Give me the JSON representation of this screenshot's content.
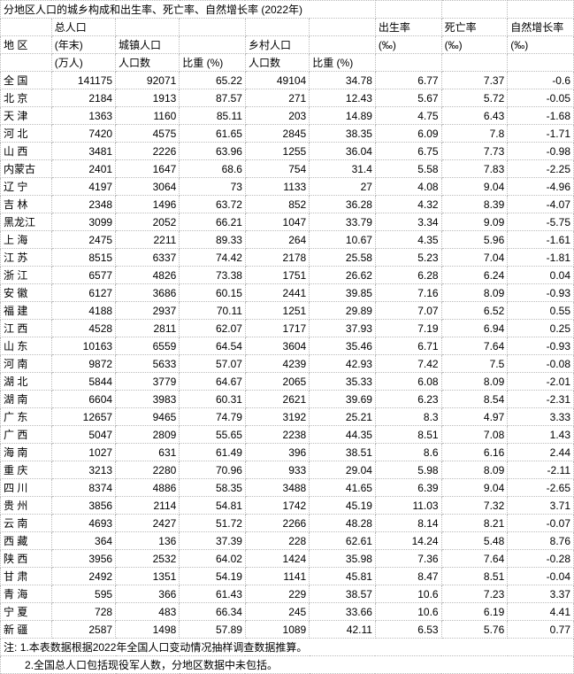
{
  "title": "分地区人口的城乡构成和出生率、死亡率、自然增长率 (2022年)",
  "headers": {
    "region": "地  区",
    "total_pop": "总人口",
    "year_end": "(年末)",
    "wan_ren": "(万人)",
    "urban_pop": "城镇人口",
    "rural_pop": "乡村人口",
    "count": "人口数",
    "pct": "比重 (%)",
    "birth_rate": "出生率",
    "death_rate": "死亡率",
    "growth_rate": "自然增长率",
    "permille": "(‰)"
  },
  "rows": [
    {
      "region": "全  国",
      "total": 141175,
      "urban": 92071,
      "urban_pct": 65.22,
      "rural": 49104,
      "rural_pct": 34.78,
      "birth": 6.77,
      "death": 7.37,
      "growth": -0.6
    },
    {
      "region": "北  京",
      "total": 2184,
      "urban": 1913,
      "urban_pct": 87.57,
      "rural": 271,
      "rural_pct": 12.43,
      "birth": 5.67,
      "death": 5.72,
      "growth": -0.05
    },
    {
      "region": "天  津",
      "total": 1363,
      "urban": 1160,
      "urban_pct": 85.11,
      "rural": 203,
      "rural_pct": 14.89,
      "birth": 4.75,
      "death": 6.43,
      "growth": -1.68
    },
    {
      "region": "河  北",
      "total": 7420,
      "urban": 4575,
      "urban_pct": 61.65,
      "rural": 2845,
      "rural_pct": 38.35,
      "birth": 6.09,
      "death": 7.8,
      "growth": -1.71
    },
    {
      "region": "山  西",
      "total": 3481,
      "urban": 2226,
      "urban_pct": 63.96,
      "rural": 1255,
      "rural_pct": 36.04,
      "birth": 6.75,
      "death": 7.73,
      "growth": -0.98
    },
    {
      "region": "内蒙古",
      "total": 2401,
      "urban": 1647,
      "urban_pct": 68.6,
      "rural": 754,
      "rural_pct": 31.4,
      "birth": 5.58,
      "death": 7.83,
      "growth": -2.25
    },
    {
      "region": "辽  宁",
      "total": 4197,
      "urban": 3064,
      "urban_pct": 73,
      "rural": 1133,
      "rural_pct": 27,
      "birth": 4.08,
      "death": 9.04,
      "growth": -4.96
    },
    {
      "region": "吉  林",
      "total": 2348,
      "urban": 1496,
      "urban_pct": 63.72,
      "rural": 852,
      "rural_pct": 36.28,
      "birth": 4.32,
      "death": 8.39,
      "growth": -4.07
    },
    {
      "region": "黑龙江",
      "total": 3099,
      "urban": 2052,
      "urban_pct": 66.21,
      "rural": 1047,
      "rural_pct": 33.79,
      "birth": 3.34,
      "death": 9.09,
      "growth": -5.75
    },
    {
      "region": "上  海",
      "total": 2475,
      "urban": 2211,
      "urban_pct": 89.33,
      "rural": 264,
      "rural_pct": 10.67,
      "birth": 4.35,
      "death": 5.96,
      "growth": -1.61
    },
    {
      "region": "江  苏",
      "total": 8515,
      "urban": 6337,
      "urban_pct": 74.42,
      "rural": 2178,
      "rural_pct": 25.58,
      "birth": 5.23,
      "death": 7.04,
      "growth": -1.81
    },
    {
      "region": "浙  江",
      "total": 6577,
      "urban": 4826,
      "urban_pct": 73.38,
      "rural": 1751,
      "rural_pct": 26.62,
      "birth": 6.28,
      "death": 6.24,
      "growth": 0.04
    },
    {
      "region": "安  徽",
      "total": 6127,
      "urban": 3686,
      "urban_pct": 60.15,
      "rural": 2441,
      "rural_pct": 39.85,
      "birth": 7.16,
      "death": 8.09,
      "growth": -0.93
    },
    {
      "region": "福  建",
      "total": 4188,
      "urban": 2937,
      "urban_pct": 70.11,
      "rural": 1251,
      "rural_pct": 29.89,
      "birth": 7.07,
      "death": 6.52,
      "growth": 0.55
    },
    {
      "region": "江  西",
      "total": 4528,
      "urban": 2811,
      "urban_pct": 62.07,
      "rural": 1717,
      "rural_pct": 37.93,
      "birth": 7.19,
      "death": 6.94,
      "growth": 0.25
    },
    {
      "region": "山  东",
      "total": 10163,
      "urban": 6559,
      "urban_pct": 64.54,
      "rural": 3604,
      "rural_pct": 35.46,
      "birth": 6.71,
      "death": 7.64,
      "growth": -0.93
    },
    {
      "region": "河  南",
      "total": 9872,
      "urban": 5633,
      "urban_pct": 57.07,
      "rural": 4239,
      "rural_pct": 42.93,
      "birth": 7.42,
      "death": 7.5,
      "growth": -0.08
    },
    {
      "region": "湖  北",
      "total": 5844,
      "urban": 3779,
      "urban_pct": 64.67,
      "rural": 2065,
      "rural_pct": 35.33,
      "birth": 6.08,
      "death": 8.09,
      "growth": -2.01
    },
    {
      "region": "湖  南",
      "total": 6604,
      "urban": 3983,
      "urban_pct": 60.31,
      "rural": 2621,
      "rural_pct": 39.69,
      "birth": 6.23,
      "death": 8.54,
      "growth": -2.31
    },
    {
      "region": "广  东",
      "total": 12657,
      "urban": 9465,
      "urban_pct": 74.79,
      "rural": 3192,
      "rural_pct": 25.21,
      "birth": 8.3,
      "death": 4.97,
      "growth": 3.33
    },
    {
      "region": "广  西",
      "total": 5047,
      "urban": 2809,
      "urban_pct": 55.65,
      "rural": 2238,
      "rural_pct": 44.35,
      "birth": 8.51,
      "death": 7.08,
      "growth": 1.43
    },
    {
      "region": "海  南",
      "total": 1027,
      "urban": 631,
      "urban_pct": 61.49,
      "rural": 396,
      "rural_pct": 38.51,
      "birth": 8.6,
      "death": 6.16,
      "growth": 2.44
    },
    {
      "region": "重  庆",
      "total": 3213,
      "urban": 2280,
      "urban_pct": 70.96,
      "rural": 933,
      "rural_pct": 29.04,
      "birth": 5.98,
      "death": 8.09,
      "growth": -2.11
    },
    {
      "region": "四  川",
      "total": 8374,
      "urban": 4886,
      "urban_pct": 58.35,
      "rural": 3488,
      "rural_pct": 41.65,
      "birth": 6.39,
      "death": 9.04,
      "growth": -2.65
    },
    {
      "region": "贵  州",
      "total": 3856,
      "urban": 2114,
      "urban_pct": 54.81,
      "rural": 1742,
      "rural_pct": 45.19,
      "birth": 11.03,
      "death": 7.32,
      "growth": 3.71
    },
    {
      "region": "云  南",
      "total": 4693,
      "urban": 2427,
      "urban_pct": 51.72,
      "rural": 2266,
      "rural_pct": 48.28,
      "birth": 8.14,
      "death": 8.21,
      "growth": -0.07
    },
    {
      "region": "西  藏",
      "total": 364,
      "urban": 136,
      "urban_pct": 37.39,
      "rural": 228,
      "rural_pct": 62.61,
      "birth": 14.24,
      "death": 5.48,
      "growth": 8.76
    },
    {
      "region": "陕  西",
      "total": 3956,
      "urban": 2532,
      "urban_pct": 64.02,
      "rural": 1424,
      "rural_pct": 35.98,
      "birth": 7.36,
      "death": 7.64,
      "growth": -0.28
    },
    {
      "region": "甘  肃",
      "total": 2492,
      "urban": 1351,
      "urban_pct": 54.19,
      "rural": 1141,
      "rural_pct": 45.81,
      "birth": 8.47,
      "death": 8.51,
      "growth": -0.04
    },
    {
      "region": "青  海",
      "total": 595,
      "urban": 366,
      "urban_pct": 61.43,
      "rural": 229,
      "rural_pct": 38.57,
      "birth": 10.6,
      "death": 7.23,
      "growth": 3.37
    },
    {
      "region": "宁  夏",
      "total": 728,
      "urban": 483,
      "urban_pct": 66.34,
      "rural": 245,
      "rural_pct": 33.66,
      "birth": 10.6,
      "death": 6.19,
      "growth": 4.41
    },
    {
      "region": "新  疆",
      "total": 2587,
      "urban": 1498,
      "urban_pct": 57.89,
      "rural": 1089,
      "rural_pct": 42.11,
      "birth": 6.53,
      "death": 5.76,
      "growth": 0.77
    }
  ],
  "notes": {
    "prefix": "注:",
    "n1": "1.本表数据根据2022年全国人口变动情况抽样调查数据推算。",
    "n2": "2.全国总人口包括现役军人数，分地区数据中未包括。"
  },
  "style": {
    "border_color": "#bbbbbb",
    "background_color": "#ffffff",
    "text_color": "#000000",
    "font_size_pt": 9
  }
}
